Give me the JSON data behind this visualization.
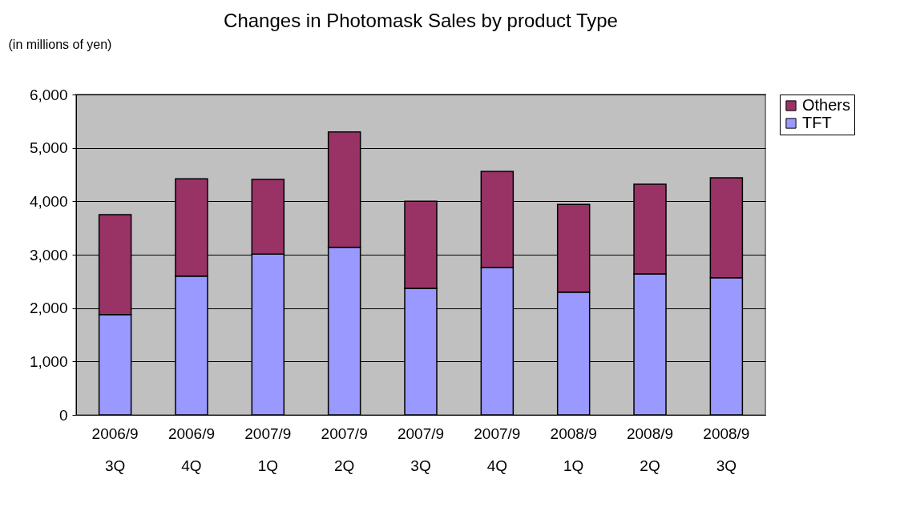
{
  "chart_data": {
    "type": "bar",
    "title": "Changes in Photomask Sales by product Type",
    "ylabel": "(in millions of yen)",
    "categories": [
      "2006/9\n3Q",
      "2006/9\n4Q",
      "2007/9\n1Q",
      "2007/9\n2Q",
      "2007/9\n3Q",
      "2007/9\n4Q",
      "2008/9\n1Q",
      "2008/9\n2Q",
      "2008/9\n3Q"
    ],
    "stacked": true,
    "series": [
      {
        "name": "TFT",
        "color": "#9999ff",
        "values": [
          1880,
          2600,
          3010,
          3140,
          2370,
          2760,
          2300,
          2640,
          2570
        ]
      },
      {
        "name": "Others",
        "color": "#993366",
        "values": [
          1870,
          1820,
          1400,
          2160,
          1630,
          1800,
          1640,
          1680,
          1870
        ]
      }
    ],
    "ylim": [
      0,
      6000
    ],
    "yticks": [
      0,
      {
        "value": 1000,
        "label": "1,000"
      },
      {
        "value": 2000,
        "label": "2,000"
      },
      {
        "value": 3000,
        "label": "3,000"
      },
      {
        "value": 4000,
        "label": "4,000"
      },
      {
        "value": 5000,
        "label": "5,000"
      },
      {
        "value": 6000,
        "label": "6,000"
      }
    ],
    "grid": "y",
    "legend": "right"
  }
}
